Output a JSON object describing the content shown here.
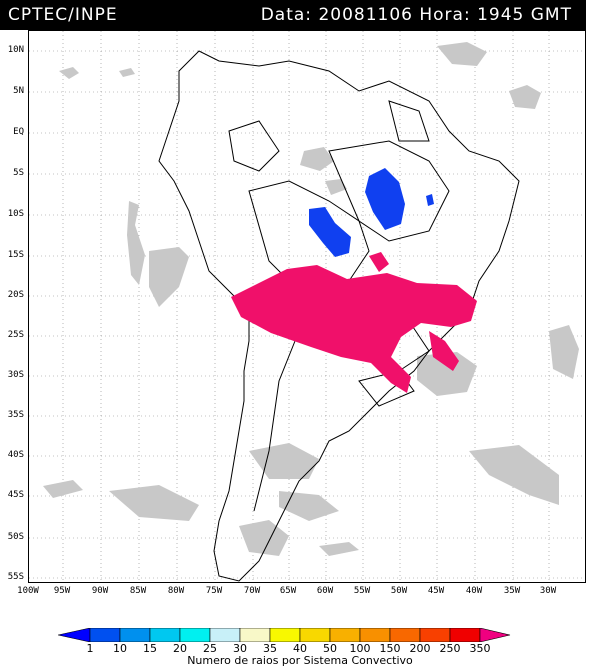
{
  "header": {
    "source": "CPTEC/INPE",
    "timestamp": "Data: 20081106 Hora: 1945 GMT"
  },
  "map": {
    "lat_labels": [
      "10N",
      "5N",
      "EQ",
      "5S",
      "10S",
      "15S",
      "20S",
      "25S",
      "30S",
      "35S",
      "40S",
      "45S",
      "50S",
      "55S"
    ],
    "lon_labels": [
      "100W",
      "95W",
      "90W",
      "85W",
      "80W",
      "75W",
      "70W",
      "65W",
      "60W",
      "55W",
      "50W",
      "45W",
      "40W",
      "35W",
      "30W"
    ],
    "grid": "dotted",
    "land_color": "#ffffff",
    "cloud_color": "#c8c8c8"
  },
  "colorbar": {
    "labels": [
      "1",
      "10",
      "15",
      "20",
      "25",
      "30",
      "35",
      "40",
      "50",
      "100",
      "150",
      "200",
      "250",
      "350"
    ],
    "colors": [
      "#0000ff",
      "#0050f0",
      "#0090ee",
      "#00c8f0",
      "#00f0f0",
      "#c8f0f8",
      "#f8f8c8",
      "#f8f800",
      "#f8d800",
      "#f8b000",
      "#f89000",
      "#f86800",
      "#f84000",
      "#f00000",
      "#f00080"
    ],
    "title": "Numero de raios por Sistema Convectivo"
  }
}
